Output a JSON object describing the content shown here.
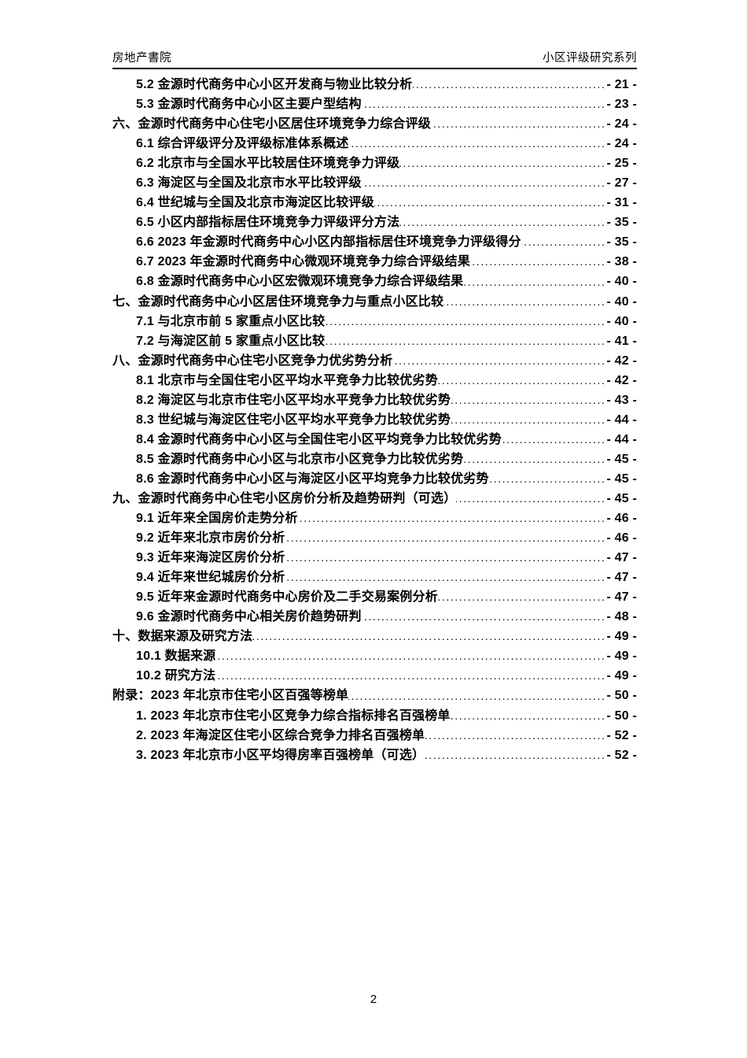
{
  "header": {
    "left": "房地产書院",
    "right": "小区评级研究系列"
  },
  "toc": {
    "entries": [
      {
        "level": 2,
        "label": "5.2 金源时代商务中心小区开发商与物业比较分析",
        "page": "- 21 -"
      },
      {
        "level": 2,
        "label": "5.3 金源时代商务中心小区主要户型结构",
        "page": "- 23 -"
      },
      {
        "level": 1,
        "label": "六、金源时代商务中心住宅小区居住环境竞争力综合评级",
        "page": "- 24 -"
      },
      {
        "level": 2,
        "label": "6.1 综合评级评分及评级标准体系概述",
        "page": "- 24 -"
      },
      {
        "level": 2,
        "label": "6.2 北京市与全国水平比较居住环境竞争力评级",
        "page": "- 25 -"
      },
      {
        "level": 2,
        "label": "6.3 海淀区与全国及北京市水平比较评级",
        "page": "- 27 -"
      },
      {
        "level": 2,
        "label": "6.4 世纪城与全国及北京市海淀区比较评级",
        "page": "- 31 -"
      },
      {
        "level": 2,
        "label": "6.5 小区内部指标居住环境竞争力评级评分方法",
        "page": "- 35 -"
      },
      {
        "level": 2,
        "label": "6.6 2023 年金源时代商务中心小区内部指标居住环境竞争力评级得分",
        "page": "- 35 -"
      },
      {
        "level": 2,
        "label": "6.7 2023 年金源时代商务中心微观环境竞争力综合评级结果",
        "page": "- 38 -"
      },
      {
        "level": 2,
        "label": "6.8 金源时代商务中心小区宏微观环境竞争力综合评级结果",
        "page": "- 40 -"
      },
      {
        "level": 1,
        "label": "七、金源时代商务中心小区居住环境竞争力与重点小区比较",
        "page": "- 40 -"
      },
      {
        "level": 2,
        "label": "7.1 与北京市前 5 家重点小区比较",
        "page": "- 40 -"
      },
      {
        "level": 2,
        "label": "7.2 与海淀区前 5 家重点小区比较",
        "page": "- 41 -"
      },
      {
        "level": 1,
        "label": "八、金源时代商务中心住宅小区竞争力优劣势分析",
        "page": "- 42 -"
      },
      {
        "level": 2,
        "label": "8.1 北京市与全国住宅小区平均水平竞争力比较优劣势",
        "page": "- 42 -"
      },
      {
        "level": 2,
        "label": "8.2 海淀区与北京市住宅小区平均水平竞争力比较优劣势",
        "page": "- 43 -"
      },
      {
        "level": 2,
        "label": "8.3 世纪城与海淀区住宅小区平均水平竞争力比较优劣势",
        "page": "- 44 -"
      },
      {
        "level": 2,
        "label": "8.4 金源时代商务中心小区与全国住宅小区平均竞争力比较优劣势",
        "page": "- 44 -"
      },
      {
        "level": 2,
        "label": "8.5 金源时代商务中心小区与北京市小区竞争力比较优劣势",
        "page": "- 45 -"
      },
      {
        "level": 2,
        "label": "8.6 金源时代商务中心小区与海淀区小区平均竞争力比较优劣势",
        "page": "- 45 -"
      },
      {
        "level": 1,
        "label": "九、金源时代商务中心住宅小区房价分析及趋势研判（可选）",
        "page": "- 45 -"
      },
      {
        "level": 2,
        "label": "9.1 近年来全国房价走势分析",
        "page": "- 46 -"
      },
      {
        "level": 2,
        "label": "9.2 近年来北京市房价分析",
        "page": "- 46 -"
      },
      {
        "level": 2,
        "label": "9.3 近年来海淀区房价分析",
        "page": "- 47 -"
      },
      {
        "level": 2,
        "label": "9.4 近年来世纪城房价分析",
        "page": "- 47 -"
      },
      {
        "level": 2,
        "label": "9.5 近年来金源时代商务中心房价及二手交易案例分析",
        "page": "- 47 -"
      },
      {
        "level": 2,
        "label": "9.6 金源时代商务中心相关房价趋势研判",
        "page": "- 48 -"
      },
      {
        "level": 1,
        "label": "十、数据来源及研究方法",
        "page": "- 49 -"
      },
      {
        "level": 2,
        "label": "10.1 数据来源",
        "page": "- 49 -"
      },
      {
        "level": 2,
        "label": "10.2 研究方法",
        "page": "- 49 -"
      },
      {
        "level": 1,
        "label": "附录：2023 年北京市住宅小区百强等榜单",
        "page": "- 50 -"
      },
      {
        "level": 2,
        "label": "1. 2023 年北京市住宅小区竞争力综合指标排名百强榜单",
        "page": "- 50 -"
      },
      {
        "level": 2,
        "label": "2. 2023 年海淀区住宅小区综合竞争力排名百强榜单",
        "page": "- 52 -"
      },
      {
        "level": 2,
        "label": "3. 2023 年北京市小区平均得房率百强榜单（可选）",
        "page": "- 52 -"
      }
    ]
  },
  "footer": {
    "page_number": "2"
  }
}
